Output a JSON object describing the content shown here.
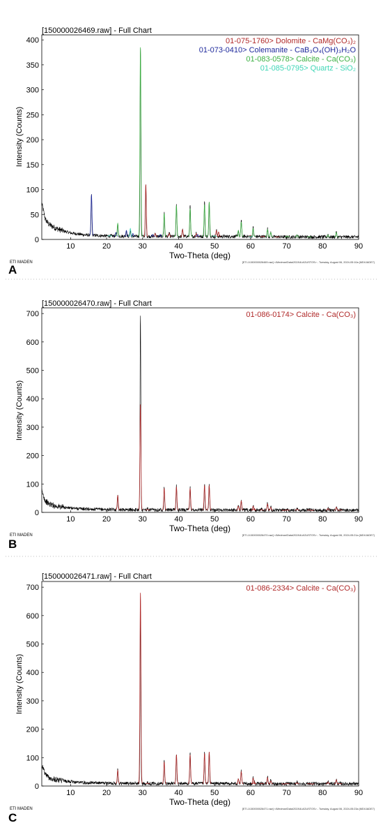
{
  "panels": [
    {
      "panel_label": "A",
      "footer_left": "ETI MADEN",
      "footer_right": "[ETI-1\\150000026469.raw] <\\Medmar\\Data\\2024\\8-AGUSTOS> - Tuesday, August 06, 2024-05:10a (MDI/JADE7)",
      "chart_data": {
        "type": "line",
        "title": "[150000026469.raw] - Full Chart",
        "xlabel": "Two-Theta (deg)",
        "ylabel": "Intensity (Counts)",
        "xlim": [
          2,
          90
        ],
        "ylim": [
          0,
          410
        ],
        "xticks": [
          10,
          20,
          30,
          40,
          50,
          60,
          70,
          80,
          90
        ],
        "yticks": [
          0,
          50,
          100,
          150,
          200,
          250,
          300,
          350,
          400
        ],
        "grid": false,
        "legend_position": "top-right",
        "legend": [
          {
            "text": "01-075-1760> Dolomite - CaMg(CO₃)₂",
            "color": "#b02a2a"
          },
          {
            "text": "01-073-0410> Colemanite - CaB₃O₄(OH)₃H₂O",
            "color": "#1f2a9c"
          },
          {
            "text": "01-083-0578> Calcite - Ca(CO₃)",
            "color": "#3cb043"
          },
          {
            "text": "01-085-0795> Quartz - SiO₂",
            "color": "#3fd6b6"
          }
        ],
        "series": [
          {
            "name": "01-075-1760> Dolomite - CaMg(CO₃)₂",
            "color": "#b02a2a",
            "peaks": [
              [
                30.9,
                110
              ],
              [
                33.5,
                12
              ],
              [
                37.4,
                12
              ],
              [
                41.1,
                20
              ],
              [
                44.9,
                12
              ],
              [
                50.5,
                18
              ],
              [
                51.1,
                15
              ],
              [
                59.9,
                8
              ],
              [
                63.4,
                6
              ],
              [
                67.4,
                5
              ]
            ]
          },
          {
            "name": "01-073-0410> Colemanite - CaB₃O₄(OH)₃H₂O",
            "color": "#1f2a9c",
            "peaks": [
              [
                15.8,
                90
              ],
              [
                22.6,
                14
              ],
              [
                25.5,
                18
              ],
              [
                27.3,
                12
              ],
              [
                32.8,
                10
              ],
              [
                34.9,
                10
              ],
              [
                45.3,
                10
              ]
            ]
          },
          {
            "name": "01-083-0578> Calcite - Ca(CO₃)",
            "color": "#3cb043",
            "peaks": [
              [
                23.1,
                32
              ],
              [
                29.4,
                385
              ],
              [
                36.0,
                52
              ],
              [
                39.4,
                68
              ],
              [
                43.2,
                62
              ],
              [
                47.2,
                70
              ],
              [
                48.5,
                75
              ],
              [
                56.6,
                18
              ],
              [
                57.4,
                35
              ],
              [
                60.7,
                22
              ],
              [
                64.7,
                20
              ],
              [
                65.6,
                14
              ],
              [
                70.2,
                7
              ],
              [
                72.9,
                9
              ],
              [
                76.3,
                6
              ],
              [
                81.5,
                9
              ],
              [
                83.8,
                14
              ]
            ]
          },
          {
            "name": "01-085-0795> Quartz - SiO₂",
            "color": "#3fd6b6",
            "peaks": [
              [
                20.9,
                8
              ],
              [
                26.6,
                22
              ],
              [
                50.1,
                8
              ],
              [
                60.0,
                5
              ]
            ]
          }
        ],
        "observed_peaks": [
          [
            15.8,
            92
          ],
          [
            22.6,
            12
          ],
          [
            23.1,
            32
          ],
          [
            25.5,
            18
          ],
          [
            26.6,
            18
          ],
          [
            29.4,
            390
          ],
          [
            30.9,
            112
          ],
          [
            33.5,
            14
          ],
          [
            36.0,
            55
          ],
          [
            37.4,
            14
          ],
          [
            39.4,
            72
          ],
          [
            41.1,
            22
          ],
          [
            43.2,
            68
          ],
          [
            44.9,
            14
          ],
          [
            47.2,
            76
          ],
          [
            48.5,
            78
          ],
          [
            50.5,
            20
          ],
          [
            56.6,
            18
          ],
          [
            57.4,
            40
          ],
          [
            60.7,
            24
          ],
          [
            64.7,
            22
          ],
          [
            65.6,
            15
          ],
          [
            72.9,
            10
          ],
          [
            81.5,
            10
          ],
          [
            83.8,
            15
          ]
        ],
        "observed_color": "#000000",
        "background": [
          [
            2,
            72
          ],
          [
            3,
            40
          ],
          [
            4,
            30
          ],
          [
            6,
            22
          ],
          [
            8,
            17
          ],
          [
            10,
            13
          ],
          [
            14,
            9
          ],
          [
            20,
            7
          ],
          [
            30,
            6
          ],
          [
            40,
            6
          ],
          [
            50,
            6
          ],
          [
            60,
            6
          ],
          [
            70,
            5
          ],
          [
            80,
            5
          ],
          [
            90,
            5
          ]
        ]
      }
    },
    {
      "panel_label": "B",
      "footer_left": "ETI MADEN",
      "footer_right": "[ETI-1\\150000026470.raw] <\\Medmar\\Data\\2024\\8-AGUSTOS> - Tuesday, August 06, 2024-05:21a (MDI/JADE7)",
      "chart_data": {
        "type": "line",
        "title": "[150000026470.raw] - Full Chart",
        "xlabel": "Two-Theta (deg)",
        "ylabel": "Intensity (Counts)",
        "xlim": [
          2,
          90
        ],
        "ylim": [
          0,
          720
        ],
        "xticks": [
          10,
          20,
          30,
          40,
          50,
          60,
          70,
          80,
          90
        ],
        "yticks": [
          0,
          100,
          200,
          300,
          400,
          500,
          600,
          700
        ],
        "grid": false,
        "legend_position": "top-right",
        "legend": [
          {
            "text": "01-086-0174> Calcite - Ca(CO₃)",
            "color": "#b02a2a"
          }
        ],
        "series": [
          {
            "name": "01-086-0174> Calcite - Ca(CO₃)",
            "color": "#b02a2a",
            "peaks": [
              [
                23.1,
                60
              ],
              [
                29.4,
                380
              ],
              [
                31.4,
                10
              ],
              [
                36.0,
                85
              ],
              [
                39.4,
                90
              ],
              [
                43.2,
                85
              ],
              [
                47.2,
                95
              ],
              [
                48.5,
                95
              ],
              [
                56.6,
                22
              ],
              [
                57.4,
                40
              ],
              [
                60.7,
                22
              ],
              [
                61.0,
                14
              ],
              [
                63.1,
                10
              ],
              [
                64.7,
                30
              ],
              [
                65.6,
                18
              ],
              [
                69.2,
                6
              ],
              [
                70.2,
                8
              ],
              [
                72.9,
                12
              ],
              [
                76.3,
                8
              ],
              [
                77.1,
                6
              ],
              [
                81.5,
                14
              ],
              [
                83.8,
                18
              ],
              [
                84.8,
                8
              ]
            ]
          }
        ],
        "observed_peaks": [
          [
            23.1,
            65
          ],
          [
            29.4,
            700
          ],
          [
            31.4,
            12
          ],
          [
            36.0,
            92
          ],
          [
            39.4,
            95
          ],
          [
            43.2,
            90
          ],
          [
            47.2,
            100
          ],
          [
            48.5,
            100
          ],
          [
            56.6,
            25
          ],
          [
            57.4,
            45
          ],
          [
            60.7,
            25
          ],
          [
            61.0,
            15
          ],
          [
            63.1,
            12
          ],
          [
            64.7,
            33
          ],
          [
            65.6,
            20
          ],
          [
            69.2,
            8
          ],
          [
            70.2,
            10
          ],
          [
            72.9,
            14
          ],
          [
            76.3,
            10
          ],
          [
            77.1,
            8
          ],
          [
            81.5,
            16
          ],
          [
            83.8,
            20
          ],
          [
            84.8,
            10
          ]
        ],
        "observed_color": "#000000",
        "background": [
          [
            2,
            75
          ],
          [
            3,
            40
          ],
          [
            4,
            30
          ],
          [
            6,
            22
          ],
          [
            8,
            18
          ],
          [
            10,
            15
          ],
          [
            14,
            12
          ],
          [
            20,
            10
          ],
          [
            30,
            9
          ],
          [
            40,
            9
          ],
          [
            50,
            9
          ],
          [
            60,
            8
          ],
          [
            70,
            8
          ],
          [
            80,
            8
          ],
          [
            90,
            8
          ]
        ]
      }
    },
    {
      "panel_label": "C",
      "footer_left": "ETI MADEN",
      "footer_right": "[ETI-1\\150000026471.raw] <\\Medmar\\Data\\2024\\8-AGUSTOS> - Tuesday, August 06, 2024-05:23a (MDI/JADE7)",
      "chart_data": {
        "type": "line",
        "title": "[150000026471.raw] - Full Chart",
        "xlabel": "Two-Theta (deg)",
        "ylabel": "Intensity (Counts)",
        "xlim": [
          2,
          90
        ],
        "ylim": [
          0,
          720
        ],
        "xticks": [
          10,
          20,
          30,
          40,
          50,
          60,
          70,
          80,
          90
        ],
        "yticks": [
          0,
          100,
          200,
          300,
          400,
          500,
          600,
          700
        ],
        "grid": false,
        "legend_position": "top-right",
        "legend": [
          {
            "text": "01-086-2334> Calcite - Ca(CO₃)",
            "color": "#b02a2a"
          }
        ],
        "series": [
          {
            "name": "01-086-2334> Calcite - Ca(CO₃)",
            "color": "#b02a2a",
            "peaks": [
              [
                23.1,
                55
              ],
              [
                29.4,
                680
              ],
              [
                31.4,
                10
              ],
              [
                36.0,
                85
              ],
              [
                39.4,
                110
              ],
              [
                43.2,
                110
              ],
              [
                47.2,
                115
              ],
              [
                48.5,
                120
              ],
              [
                56.6,
                25
              ],
              [
                57.4,
                50
              ],
              [
                60.7,
                28
              ],
              [
                61.0,
                16
              ],
              [
                63.1,
                10
              ],
              [
                64.7,
                30
              ],
              [
                65.6,
                18
              ],
              [
                69.2,
                6
              ],
              [
                70.2,
                8
              ],
              [
                72.9,
                12
              ],
              [
                76.3,
                8
              ],
              [
                77.1,
                6
              ],
              [
                81.5,
                14
              ],
              [
                83.8,
                22
              ],
              [
                84.8,
                8
              ]
            ]
          }
        ],
        "observed_peaks": [
          [
            23.1,
            62
          ],
          [
            29.4,
            620
          ],
          [
            31.4,
            12
          ],
          [
            36.0,
            90
          ],
          [
            39.4,
            115
          ],
          [
            43.2,
            115
          ],
          [
            47.2,
            120
          ],
          [
            48.5,
            125
          ],
          [
            56.6,
            28
          ],
          [
            57.4,
            55
          ],
          [
            60.7,
            30
          ],
          [
            61.0,
            16
          ],
          [
            63.1,
            12
          ],
          [
            64.7,
            34
          ],
          [
            65.6,
            20
          ],
          [
            69.2,
            8
          ],
          [
            70.2,
            10
          ],
          [
            72.9,
            14
          ],
          [
            76.3,
            10
          ],
          [
            77.1,
            8
          ],
          [
            81.5,
            16
          ],
          [
            83.8,
            24
          ],
          [
            84.8,
            10
          ]
        ],
        "observed_color": "#000000",
        "background": [
          [
            2,
            75
          ],
          [
            3,
            42
          ],
          [
            4,
            30
          ],
          [
            6,
            22
          ],
          [
            8,
            18
          ],
          [
            10,
            15
          ],
          [
            14,
            12
          ],
          [
            20,
            10
          ],
          [
            30,
            9
          ],
          [
            40,
            9
          ],
          [
            50,
            9
          ],
          [
            60,
            8
          ],
          [
            70,
            8
          ],
          [
            80,
            8
          ],
          [
            90,
            8
          ]
        ]
      }
    }
  ]
}
